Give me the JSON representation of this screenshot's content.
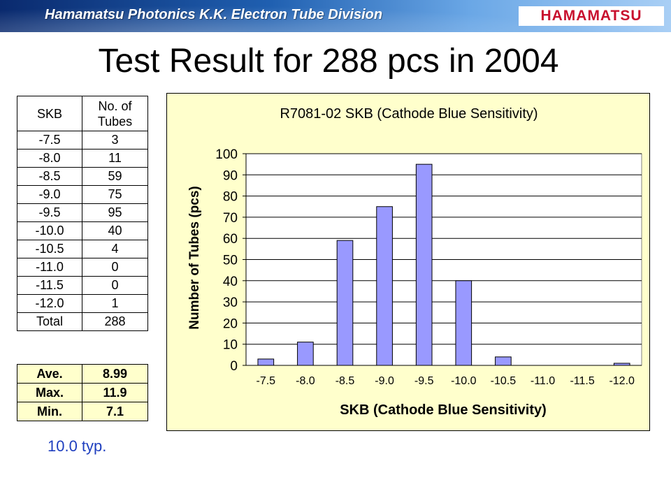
{
  "header": {
    "division": "Hamamatsu Photonics K.K.  Electron Tube Division",
    "logo_text": "HAMAMATSU"
  },
  "slide": {
    "title": "Test Result for 288 pcs in 2004",
    "typ_note": "10.0 typ."
  },
  "dist_table": {
    "col1_header": "SKB",
    "col2_header_line1": "No. of",
    "col2_header_line2": "Tubes",
    "rows": [
      {
        "skb": "-7.5",
        "count": "3"
      },
      {
        "skb": "-8.0",
        "count": "11"
      },
      {
        "skb": "-8.5",
        "count": "59"
      },
      {
        "skb": "-9.0",
        "count": "75"
      },
      {
        "skb": "-9.5",
        "count": "95"
      },
      {
        "skb": "-10.0",
        "count": "40"
      },
      {
        "skb": "-10.5",
        "count": "4"
      },
      {
        "skb": "-11.0",
        "count": "0"
      },
      {
        "skb": "-11.5",
        "count": "0"
      },
      {
        "skb": "-12.0",
        "count": "1"
      }
    ],
    "total_label": "Total",
    "total_value": "288"
  },
  "stats_table": {
    "rows": [
      {
        "label": "Ave.",
        "value": "8.99"
      },
      {
        "label": "Max.",
        "value": "11.9"
      },
      {
        "label": "Min.",
        "value": "7.1"
      }
    ]
  },
  "chart_data": {
    "type": "bar",
    "title": "R7081-02 SKB (Cathode Blue Sensitivity)",
    "xlabel": "SKB (Cathode Blue Sensitivity)",
    "ylabel": "Number of Tubes (pcs)",
    "categories": [
      "-7.5",
      "-8.0",
      "-8.5",
      "-9.0",
      "-9.5",
      "-10.0",
      "-10.5",
      "-11.0",
      "-11.5",
      "-12.0"
    ],
    "values": [
      3,
      11,
      59,
      75,
      95,
      40,
      4,
      0,
      0,
      1
    ],
    "ylim": [
      0,
      100
    ],
    "yticks": [
      0,
      10,
      20,
      30,
      40,
      50,
      60,
      70,
      80,
      90,
      100
    ],
    "grid": true,
    "legend": "none",
    "colors": {
      "bar": "#9999ff",
      "plot_bg": "#ffffff",
      "chart_bg": "#ffffcc"
    }
  }
}
